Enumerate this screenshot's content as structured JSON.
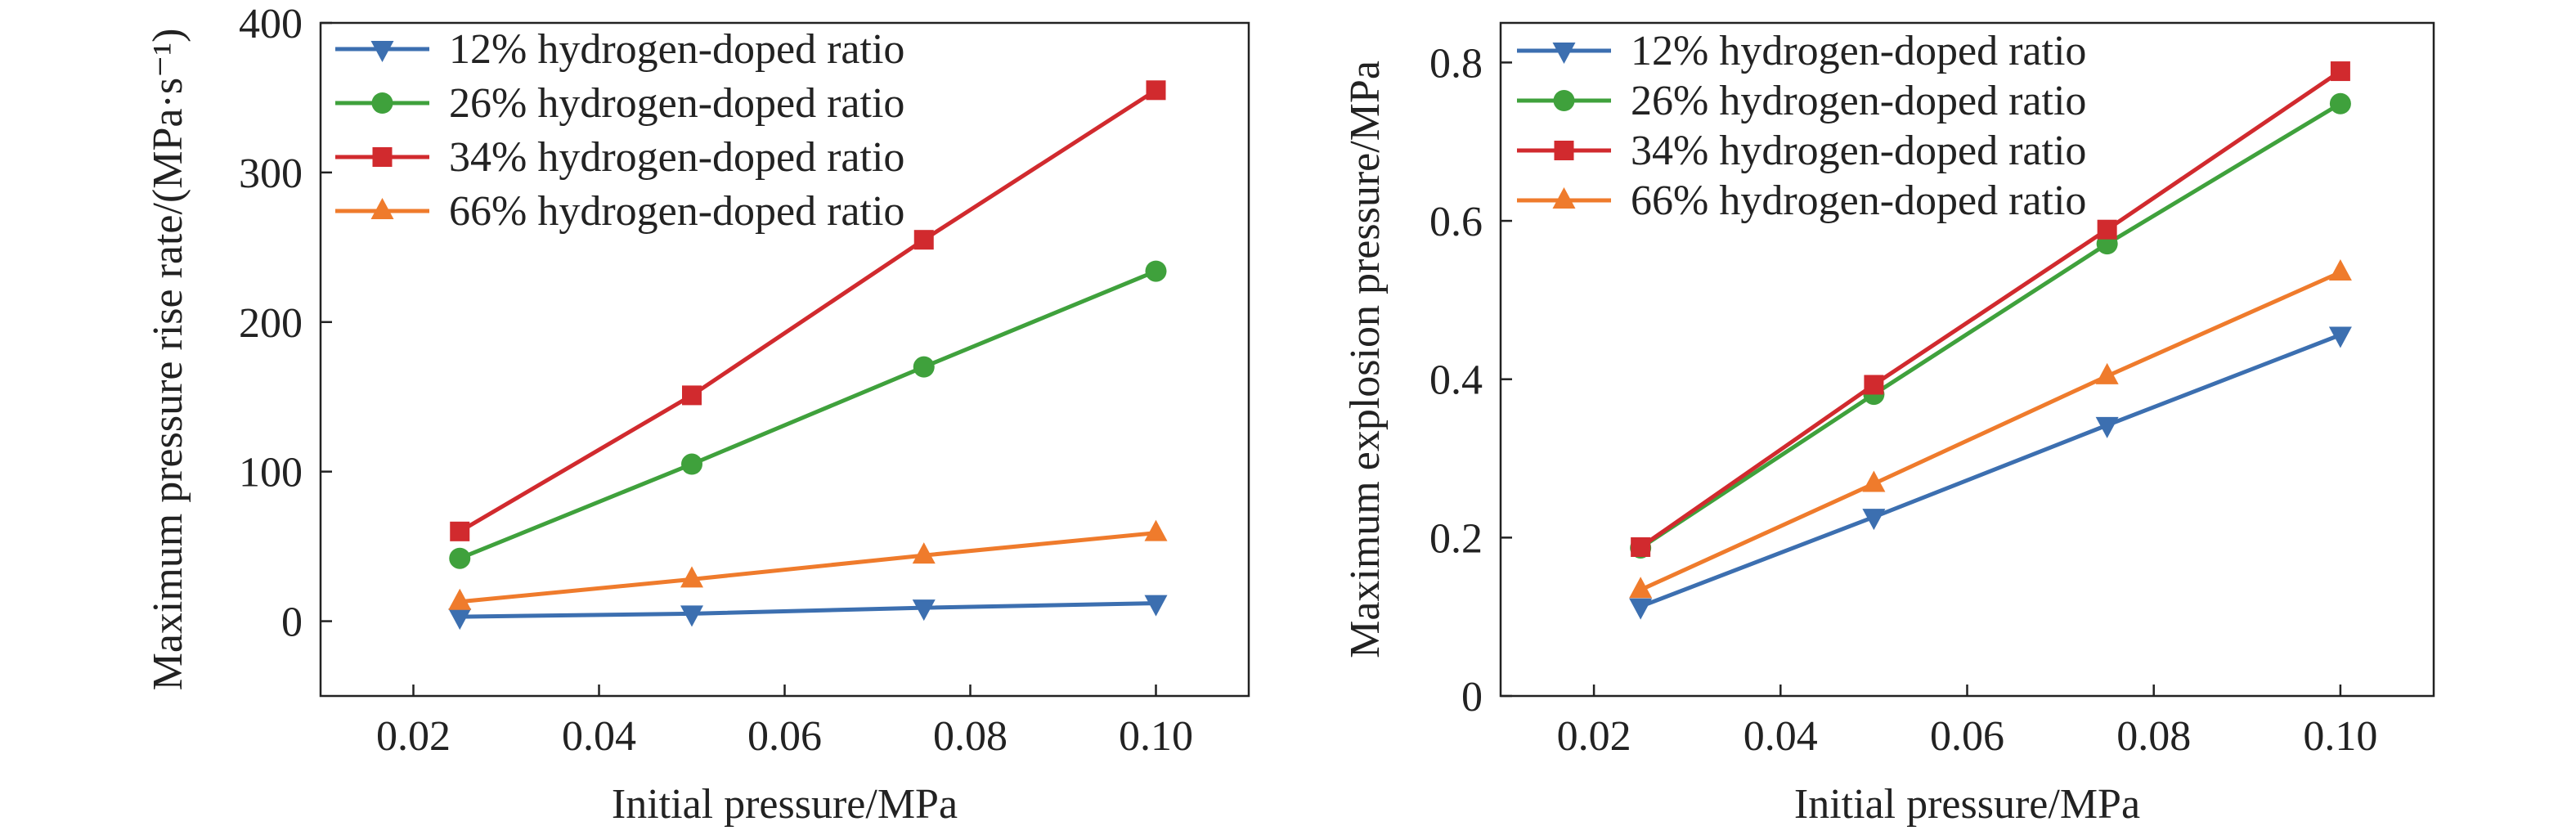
{
  "chart_data": [
    {
      "type": "line",
      "title": "",
      "xlabel": "Initial pressure/MPa",
      "ylabel": "Maximum pressure rise rate/(MPa·s⁻¹)",
      "xlim": [
        0.01,
        0.11
      ],
      "ylim": [
        -50,
        400
      ],
      "x_ticks": [
        "0.02",
        "0.04",
        "0.06",
        "0.08",
        "0.10"
      ],
      "x_tick_values": [
        0.02,
        0.04,
        0.06,
        0.08,
        0.1
      ],
      "y_ticks": [
        "0",
        "100",
        "200",
        "300",
        "400"
      ],
      "y_tick_values": [
        0,
        100,
        200,
        300,
        400
      ],
      "x": [
        0.025,
        0.05,
        0.075,
        0.1
      ],
      "legend_position": "top-left",
      "grid": false,
      "series": [
        {
          "name": "12% hydrogen-doped ratio",
          "values": [
            3,
            5,
            9,
            12
          ],
          "color": "#3c6fb0",
          "marker": "triangle-down"
        },
        {
          "name": "26% hydrogen-doped ratio",
          "values": [
            42,
            105,
            170,
            234
          ],
          "color": "#3fa13c",
          "marker": "circle"
        },
        {
          "name": "34% hydrogen-doped ratio",
          "values": [
            60,
            151,
            255,
            355
          ],
          "color": "#d12a2e",
          "marker": "square"
        },
        {
          "name": "66% hydrogen-doped ratio",
          "values": [
            13,
            28,
            44,
            59
          ],
          "color": "#ef7b2c",
          "marker": "triangle-up"
        }
      ]
    },
    {
      "type": "line",
      "title": "",
      "xlabel": "Initial pressure/MPa",
      "ylabel": "Maximum explosion pressure/MPa",
      "xlim": [
        0.01,
        0.11
      ],
      "ylim": [
        0,
        0.85
      ],
      "x_ticks": [
        "0.02",
        "0.04",
        "0.06",
        "0.08",
        "0.10"
      ],
      "x_tick_values": [
        0.02,
        0.04,
        0.06,
        0.08,
        0.1
      ],
      "y_ticks": [
        "0",
        "0.2",
        "0.4",
        "0.6",
        "0.8"
      ],
      "y_tick_values": [
        0,
        0.2,
        0.4,
        0.6,
        0.8
      ],
      "x": [
        0.025,
        0.05,
        0.075,
        0.1
      ],
      "legend_position": "top-left",
      "grid": false,
      "series": [
        {
          "name": "12% hydrogen-doped ratio",
          "values": [
            0.113,
            0.226,
            0.342,
            0.456
          ],
          "color": "#3c6fb0",
          "marker": "triangle-down"
        },
        {
          "name": "26% hydrogen-doped ratio",
          "values": [
            0.187,
            0.381,
            0.571,
            0.748
          ],
          "color": "#3fa13c",
          "marker": "circle"
        },
        {
          "name": "34% hydrogen-doped ratio",
          "values": [
            0.188,
            0.393,
            0.589,
            0.789
          ],
          "color": "#d12a2e",
          "marker": "square"
        },
        {
          "name": "66% hydrogen-doped ratio",
          "values": [
            0.134,
            0.268,
            0.404,
            0.535
          ],
          "color": "#ef7b2c",
          "marker": "triangle-up"
        }
      ]
    }
  ]
}
